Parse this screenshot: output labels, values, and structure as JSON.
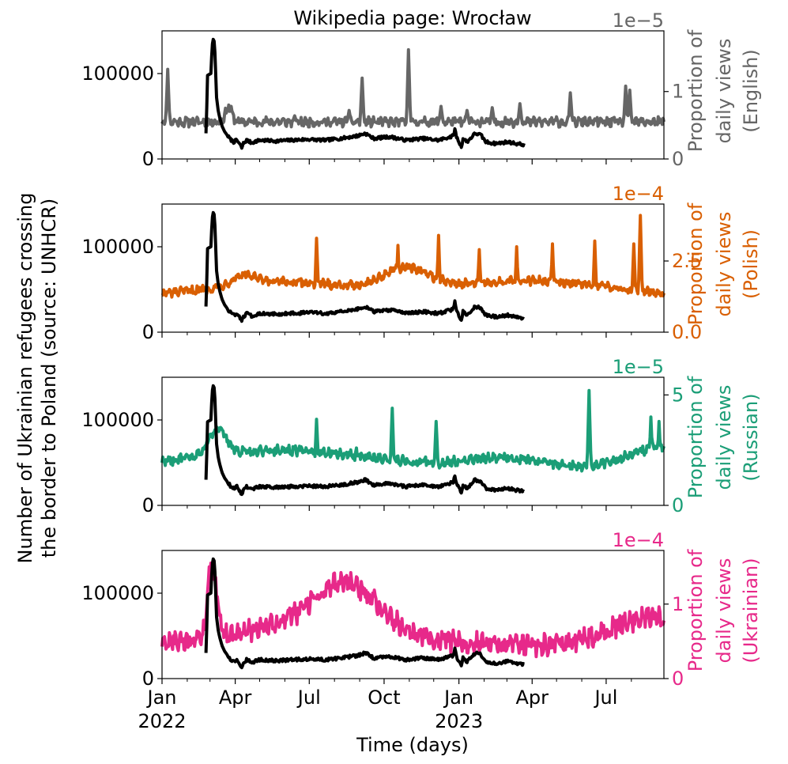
{
  "figure": {
    "title": "Wikipedia page: Wrocław",
    "left_ylabel_line1": "Number of Ukrainian refugees crossing",
    "left_ylabel_line2": "the border to Poland (source: UNHCR)",
    "xlabel": "Time (days)",
    "refugee_color": "#000000"
  },
  "chart_data": [
    {
      "type": "line",
      "name": "English",
      "color": "#666666",
      "multiplier": "1e−5",
      "right_label": [
        "Proportion of",
        "daily views",
        "(English)"
      ],
      "right_ylim": [
        0,
        1.9
      ],
      "right_ticks": [
        {
          "v": 0,
          "label": "0"
        },
        {
          "v": 1,
          "label": "1"
        }
      ],
      "base": 0.55,
      "noise": 0.055,
      "spikes": [
        [
          7,
          1.33
        ],
        [
          82,
          0.8
        ],
        [
          163,
          0.64
        ],
        [
          230,
          0.72
        ],
        [
          246,
          1.2
        ],
        [
          303,
          1.62
        ],
        [
          343,
          0.78
        ],
        [
          375,
          0.72
        ],
        [
          406,
          0.76
        ],
        [
          440,
          0.82
        ],
        [
          502,
          0.98
        ],
        [
          570,
          1.08
        ],
        [
          575,
          1.02
        ]
      ],
      "bumps": [
        [
          82,
          0.2,
          6
        ]
      ]
    },
    {
      "type": "line",
      "name": "Polish",
      "color": "#d95f02",
      "multiplier": "1e−4",
      "right_label": [
        "Proportion of",
        "daily views",
        "(Polish)"
      ],
      "right_ylim": [
        0,
        4.5
      ],
      "right_ticks": [
        {
          "v": 0,
          "label": "0.0"
        },
        {
          "v": 2.5,
          "label": "2.5"
        }
      ],
      "base": 1.25,
      "noise": 0.12,
      "spikes": [
        [
          190,
          3.3
        ],
        [
          290,
          3.05
        ],
        [
          340,
          3.4
        ],
        [
          390,
          2.9
        ],
        [
          436,
          3.0
        ],
        [
          480,
          3.1
        ],
        [
          532,
          3.2
        ],
        [
          580,
          3.1
        ],
        [
          588,
          4.1
        ]
      ],
      "bumps": [
        [
          100,
          0.35,
          20
        ],
        [
          150,
          0.5,
          120
        ],
        [
          300,
          0.75,
          40
        ],
        [
          450,
          0.55,
          140
        ]
      ]
    },
    {
      "type": "line",
      "name": "Russian",
      "color": "#1b9e77",
      "multiplier": "1e−5",
      "right_label": [
        "Proportion of",
        "daily views",
        "(Russian)"
      ],
      "right_ylim": [
        0,
        5.8
      ],
      "right_ticks": [
        {
          "v": 0,
          "label": "0"
        },
        {
          "v": 5,
          "label": "5"
        }
      ],
      "base": 1.7,
      "noise": 0.17,
      "spikes": [
        [
          190,
          3.9
        ],
        [
          239,
          2.6
        ],
        [
          283,
          4.4
        ],
        [
          337,
          3.8
        ],
        [
          525,
          5.2
        ],
        [
          601,
          4.0
        ],
        [
          611,
          3.8
        ],
        [
          630,
          3.6
        ]
      ],
      "bumps": [
        [
          68,
          1.2,
          15
        ],
        [
          150,
          0.8,
          150
        ],
        [
          420,
          0.45,
          60
        ],
        [
          620,
          1.0,
          60
        ]
      ]
    },
    {
      "type": "line",
      "name": "Ukrainian",
      "color": "#e7298a",
      "multiplier": "1e−4",
      "right_label": [
        "Proportion of",
        "daily views",
        "(Ukrainian)"
      ],
      "right_ylim": [
        0,
        1.72
      ],
      "right_ticks": [
        {
          "v": 0,
          "label": "0"
        },
        {
          "v": 1,
          "label": "1"
        }
      ],
      "base": 0.44,
      "noise": 0.11,
      "spikes": [
        [
          60,
          1.55
        ],
        [
          58,
          1.5
        ]
      ],
      "bumps": [
        [
          62,
          0.95,
          8
        ],
        [
          200,
          0.35,
          120
        ],
        [
          226,
          0.52,
          50
        ],
        [
          600,
          0.38,
          70
        ]
      ]
    }
  ],
  "refugees": {
    "ylim": [
      0,
      150000
    ],
    "ticks": [
      {
        "v": 0,
        "label": "0"
      },
      {
        "v": 100000,
        "label": "100000"
      }
    ],
    "points": [
      [
        54,
        30000
      ],
      [
        55,
        60000
      ],
      [
        56,
        98000
      ],
      [
        58,
        99000
      ],
      [
        60,
        100000
      ],
      [
        61,
        120000
      ],
      [
        62,
        135000
      ],
      [
        63,
        140000
      ],
      [
        64,
        138000
      ],
      [
        65,
        125000
      ],
      [
        66,
        100000
      ],
      [
        67,
        72000
      ],
      [
        69,
        57000
      ],
      [
        71,
        48000
      ],
      [
        74,
        38000
      ],
      [
        77,
        32000
      ],
      [
        80,
        28000
      ],
      [
        84,
        23000
      ],
      [
        88,
        20000
      ],
      [
        92,
        22000
      ],
      [
        95,
        18000
      ],
      [
        98,
        13000
      ],
      [
        100,
        18000
      ],
      [
        104,
        22000
      ],
      [
        110,
        19000
      ],
      [
        120,
        22000
      ],
      [
        140,
        21000
      ],
      [
        160,
        22000
      ],
      [
        180,
        23000
      ],
      [
        200,
        22000
      ],
      [
        220,
        24000
      ],
      [
        240,
        27000
      ],
      [
        250,
        30000
      ],
      [
        260,
        24000
      ],
      [
        280,
        26000
      ],
      [
        300,
        22000
      ],
      [
        320,
        24000
      ],
      [
        340,
        22000
      ],
      [
        358,
        27000
      ],
      [
        360,
        35000
      ],
      [
        362,
        26000
      ],
      [
        366,
        18000
      ],
      [
        368,
        14000
      ],
      [
        370,
        24000
      ],
      [
        375,
        20000
      ],
      [
        385,
        30000
      ],
      [
        392,
        28000
      ],
      [
        398,
        20000
      ],
      [
        410,
        18000
      ],
      [
        425,
        20000
      ],
      [
        435,
        18000
      ],
      [
        442,
        17000
      ],
      [
        445,
        17000
      ]
    ]
  },
  "x_axis": {
    "ticks": [
      {
        "day": 0,
        "label": "Jan",
        "year": "2022"
      },
      {
        "day": 90,
        "label": "Apr",
        "year": ""
      },
      {
        "day": 181,
        "label": "Jul",
        "year": ""
      },
      {
        "day": 273,
        "label": "Oct",
        "year": ""
      },
      {
        "day": 365,
        "label": "Jan",
        "year": "2023"
      },
      {
        "day": 455,
        "label": "Apr",
        "year": ""
      },
      {
        "day": 546,
        "label": "Jul",
        "year": ""
      }
    ],
    "minor_ticks": [
      31,
      59,
      120,
      151,
      212,
      243,
      304,
      334,
      396,
      424,
      485,
      516,
      577
    ],
    "xlim": [
      0,
      617
    ]
  }
}
